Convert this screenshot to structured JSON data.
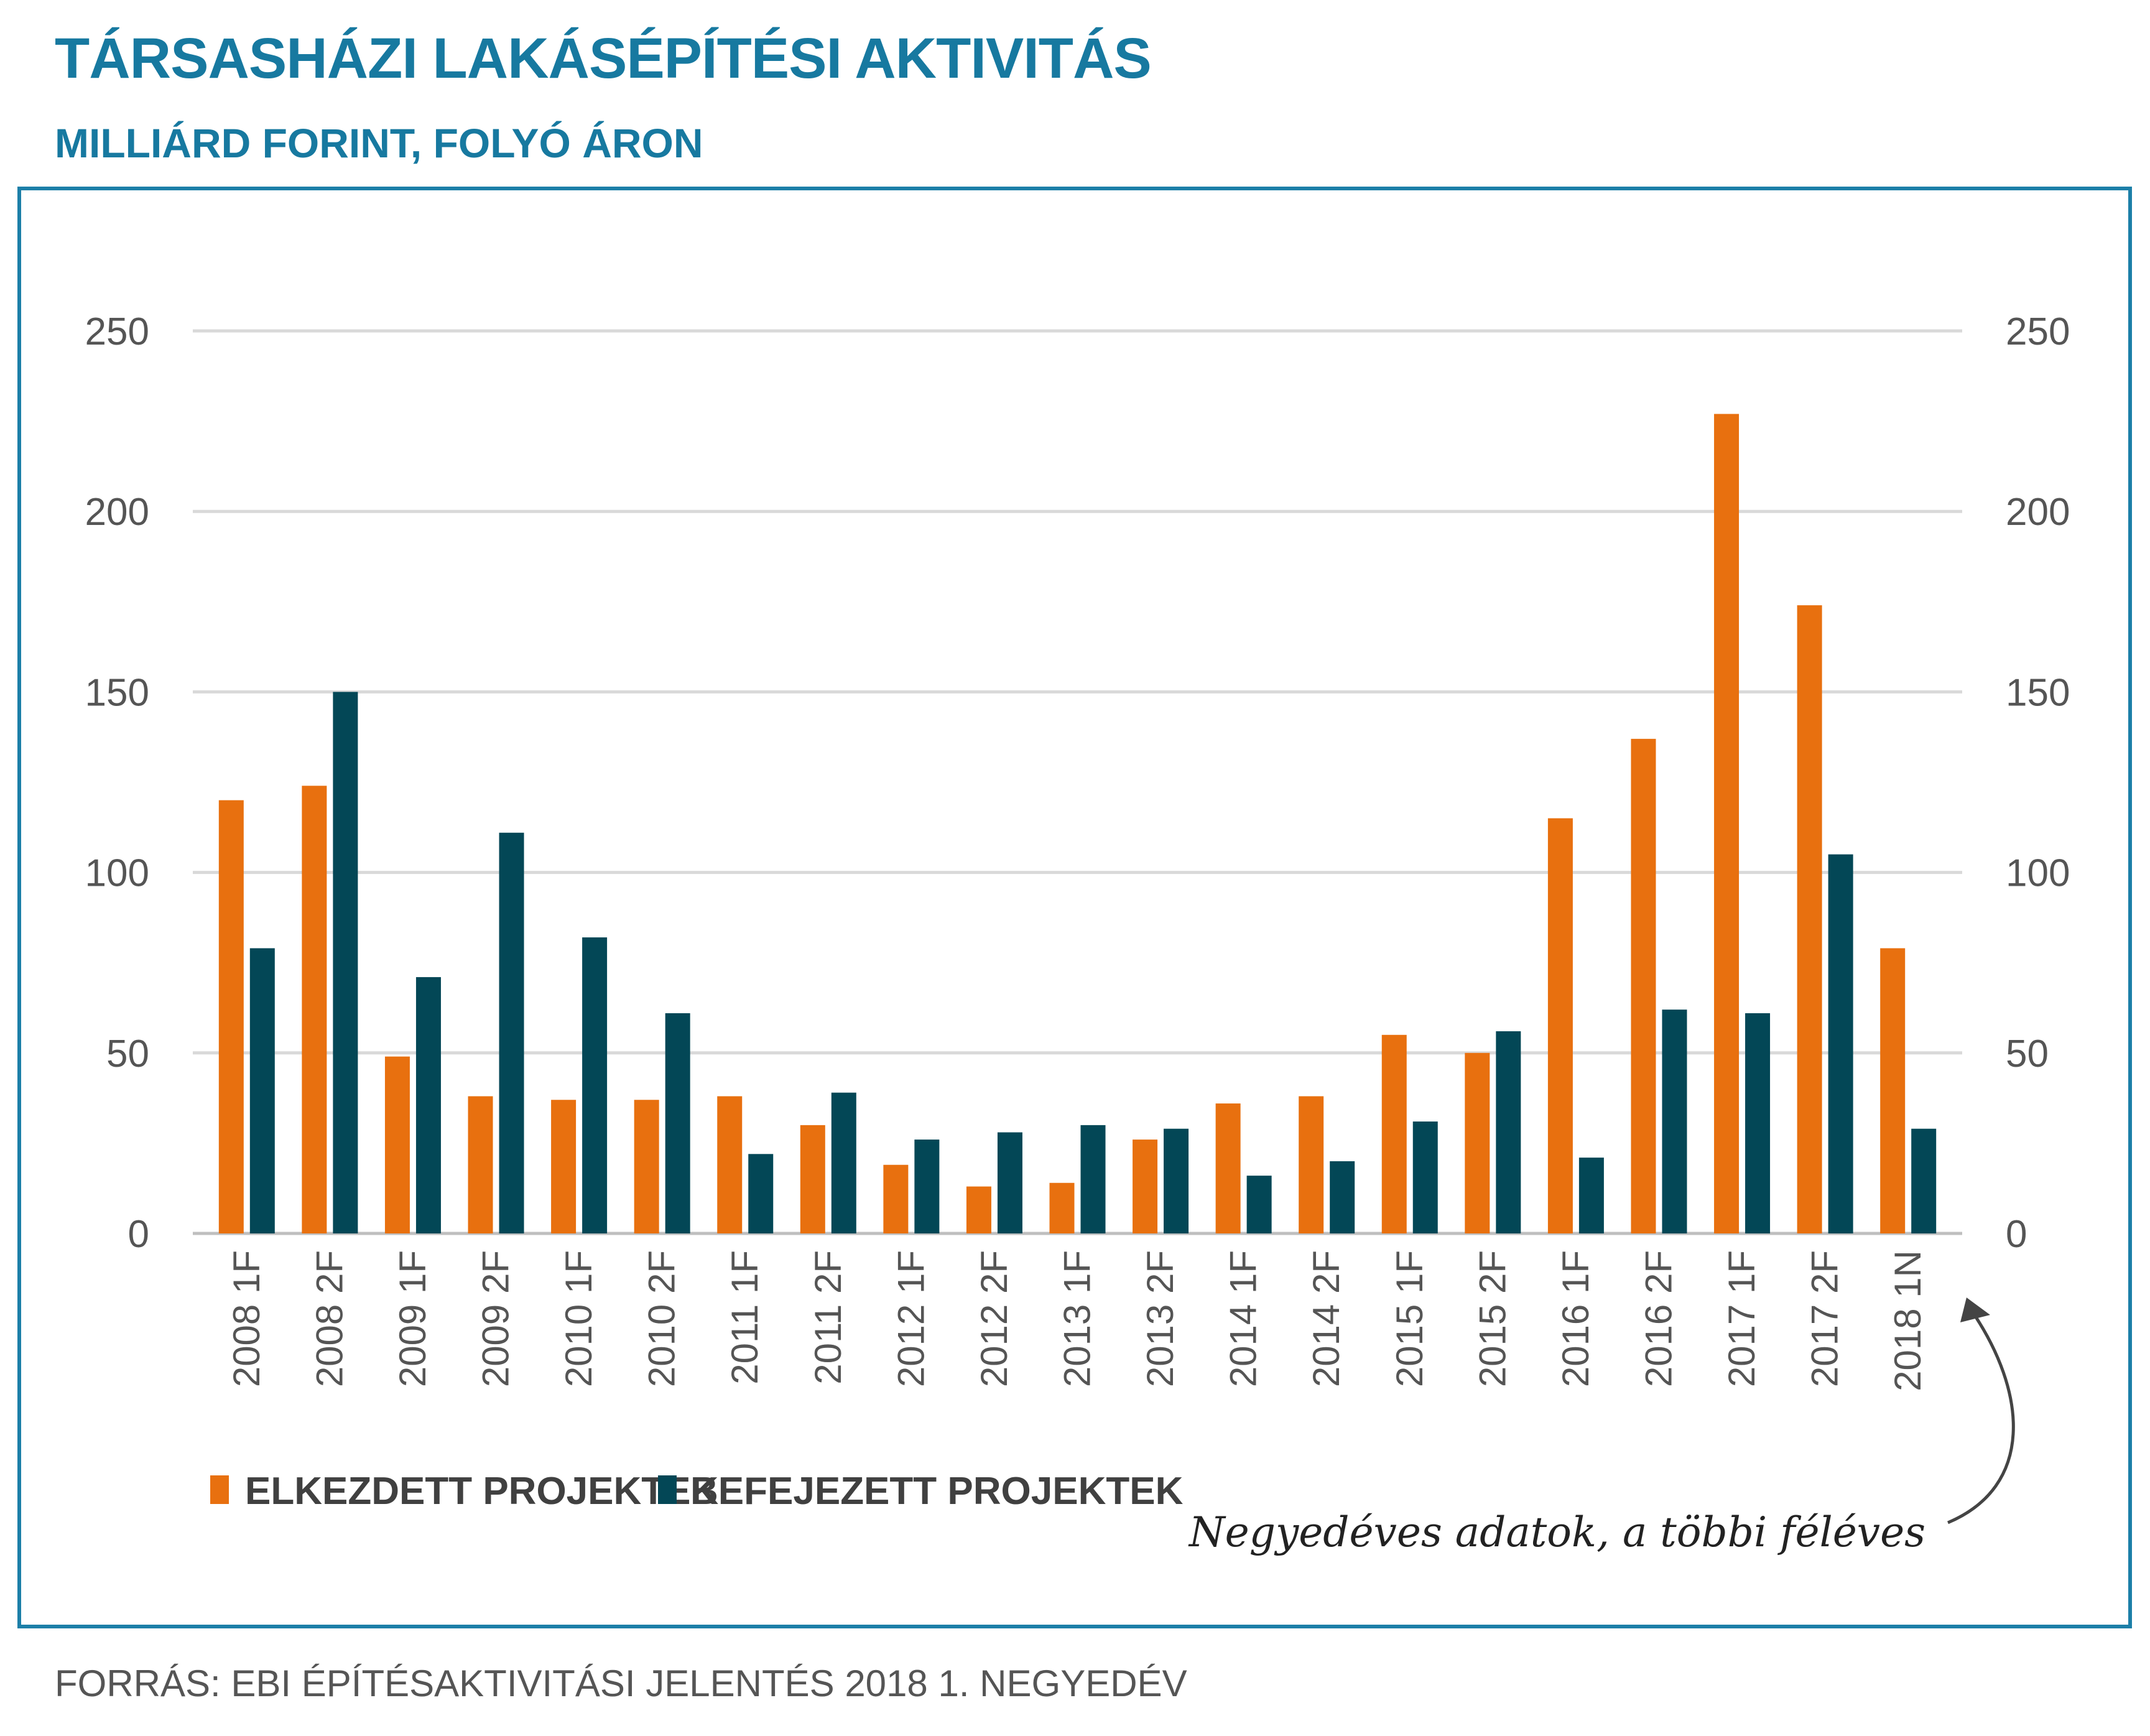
{
  "header": {
    "title": "TÁRSASHÁZI LAKÁSÉPÍTÉSI AKTIVITÁS",
    "subtitle": "MILLIÁRD FORINT, FOLYÓ ÁRON"
  },
  "footer": {
    "source": "FORRÁS: EBI ÉPÍTÉSAKTIVITÁSI JELENTÉS 2018 1. NEGYEDÉV"
  },
  "annotation": {
    "text": "Negyedéves adatok, a többi féléves"
  },
  "colors": {
    "started": "#e8700f",
    "completed": "#034756",
    "grid": "#d9d9d9",
    "accent": "#1779a0"
  },
  "chart_data": {
    "type": "bar",
    "title": "TÁRSASHÁZI LAKÁSÉPÍTÉSI AKTIVITÁS",
    "subtitle": "MILLIÁRD FORINT, FOLYÓ ÁRON",
    "xlabel": "",
    "ylabel": "",
    "ylim": [
      0,
      250
    ],
    "yticks": [
      0,
      50,
      100,
      150,
      200,
      250
    ],
    "dual_axis": true,
    "grid": true,
    "legend_position": "bottom-left",
    "categories": [
      "2008 1F",
      "2008 2F",
      "2009 1F",
      "2009 2F",
      "2010 1F",
      "2010 2F",
      "2011 1F",
      "2011 2F",
      "2012 1F",
      "2012 2F",
      "2013 1F",
      "2013 2F",
      "2014 1F",
      "2014 2F",
      "2015 1F",
      "2015 2F",
      "2016 1F",
      "2016 2F",
      "2017 1F",
      "2017 2F",
      "2018 1N"
    ],
    "series": [
      {
        "name": "ELKEZDETT PROJEKTEK",
        "color": "#e8700f",
        "values": [
          120,
          124,
          49,
          38,
          37,
          37,
          38,
          30,
          19,
          13,
          14,
          26,
          36,
          38,
          55,
          50,
          115,
          137,
          227,
          174,
          79
        ]
      },
      {
        "name": "BEFEJEZETT PROJEKTEK",
        "color": "#034756",
        "values": [
          79,
          150,
          71,
          111,
          82,
          61,
          22,
          39,
          26,
          28,
          30,
          29,
          16,
          20,
          31,
          56,
          21,
          62,
          61,
          105,
          29
        ]
      }
    ]
  }
}
